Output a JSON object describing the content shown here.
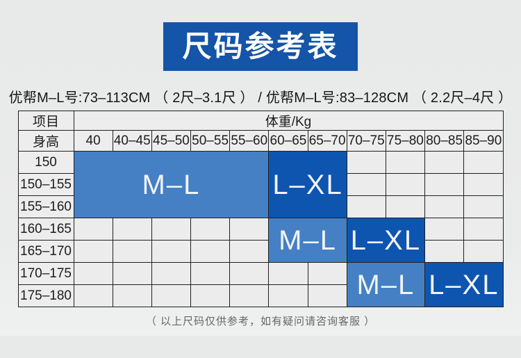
{
  "banner": {
    "title": "尺码参考表"
  },
  "subtitle": "优帮M–L号:73–113CM （ 2尺–3.1尺 ） / 优帮M–L号:83–128CM （ 2.2尺–4尺 ）",
  "table": {
    "corner_header": "项目",
    "weight_header": "体重/Kg",
    "height_header": "身高",
    "weights": [
      "40",
      "40–45",
      "45–50",
      "50–55",
      "55–60",
      "60–65",
      "65–70",
      "70–75",
      "75–80",
      "80–85",
      "85–90"
    ],
    "heights": [
      "150",
      "150–155",
      "155–160",
      "160–165",
      "165–170",
      "170–175",
      "175–180"
    ],
    "zones": [
      {
        "label": "M–L",
        "heights": "150 to 155–160",
        "weights": "40 to 55–60"
      },
      {
        "label": "L–XL",
        "heights": "150 to 155–160",
        "weights": "60–65 to 65–70"
      },
      {
        "label": "M–L",
        "heights": "160–165 to 165–170",
        "weights": "60–65 to 65–70"
      },
      {
        "label": "L–XL",
        "heights": "160–165 to 165–170",
        "weights": "70–75 to 75–80"
      },
      {
        "label": "M–L",
        "heights": "170–175 to 175–180",
        "weights": "70–75 to 75–80"
      },
      {
        "label": "L–XL",
        "heights": "170–175 to 175–180",
        "weights": "80–85 to 85–90"
      }
    ]
  },
  "footnote": "（ 以上尺码仅供参考，如有疑问请咨询客服 ）",
  "colors": {
    "banner_blue": "#1454a9",
    "ml_blue": "#4580c4",
    "lxl_blue": "#0e55b0"
  }
}
